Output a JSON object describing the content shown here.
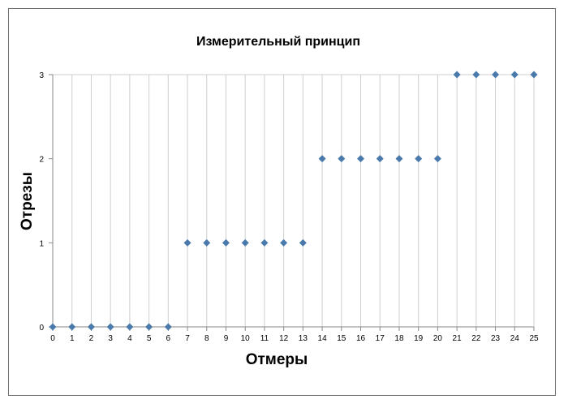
{
  "chart_data": {
    "type": "scatter",
    "title": "Измерительный принцип",
    "xlabel": "Отмеры",
    "ylabel": "Отрезы",
    "xlim": [
      0,
      25
    ],
    "ylim": [
      0,
      3
    ],
    "x_ticks": [
      "0",
      "1",
      "2",
      "3",
      "4",
      "5",
      "6",
      "7",
      "8",
      "9",
      "10",
      "11",
      "12",
      "13",
      "14",
      "15",
      "16",
      "17",
      "18",
      "19",
      "20",
      "21",
      "22",
      "23",
      "24",
      "25"
    ],
    "y_ticks": [
      "0",
      "1",
      "2",
      "3"
    ],
    "grid": "vertical",
    "marker": "diamond",
    "color": "#4a7aac",
    "series": [
      {
        "x": [
          0,
          1,
          2,
          3,
          4,
          5,
          6,
          7,
          8,
          9,
          10,
          11,
          12,
          13,
          14,
          15,
          16,
          17,
          18,
          19,
          20,
          21,
          22,
          23,
          24,
          25
        ],
        "y": [
          0,
          0,
          0,
          0,
          0,
          0,
          0,
          1,
          1,
          1,
          1,
          1,
          1,
          1,
          2,
          2,
          2,
          2,
          2,
          2,
          2,
          3,
          3,
          3,
          3,
          3
        ]
      }
    ]
  }
}
